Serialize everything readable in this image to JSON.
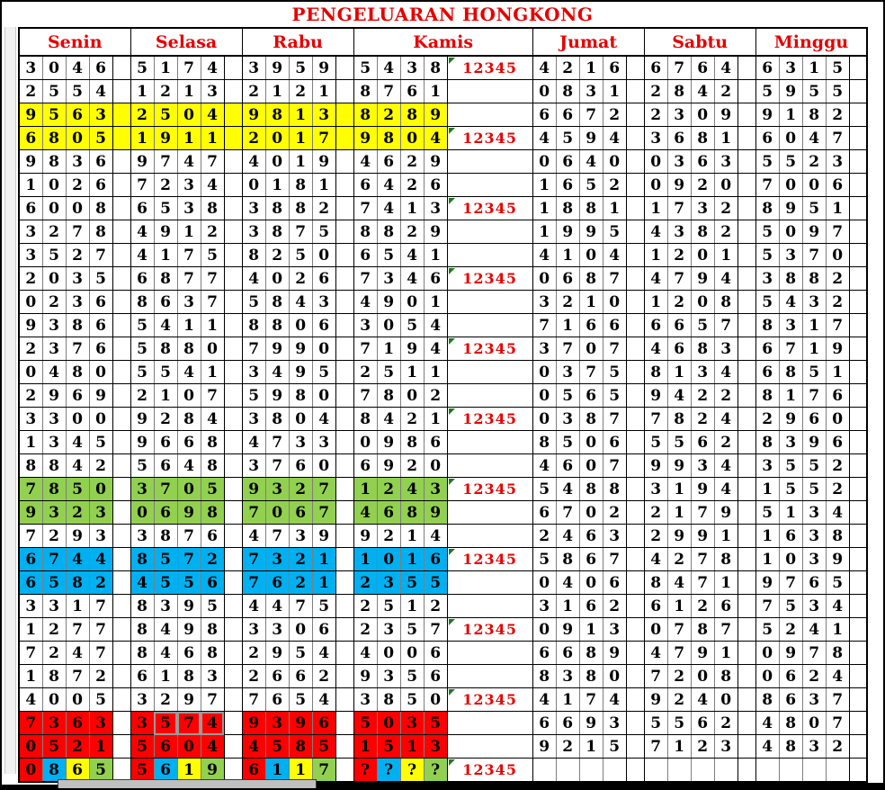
{
  "title": "PENGELUARAN HONGKONG",
  "colors": {
    "yellow": "#ffff00",
    "green": "#92d050",
    "blue": "#00b0f0",
    "red": "#ff0000",
    "red_text": "#ff0000",
    "header_text": "#e60000"
  },
  "table": {
    "day_headers": [
      "Senin",
      "Selasa",
      "Rabu",
      "Kamis",
      "Jumat",
      "Sabtu",
      "Minggu"
    ],
    "label_text": "12345",
    "rows": [
      {
        "senin": "3046",
        "selasa": "5174",
        "rabu": "3959",
        "kamis": "5438",
        "jumat": "4216",
        "sabtu": "6764",
        "minggu": "6315",
        "lbl": true,
        "red": {
          "kamis": [
            2
          ]
        }
      },
      {
        "senin": "2554",
        "selasa": "1213",
        "rabu": "2121",
        "kamis": "8761",
        "jumat": "0831",
        "sabtu": "2842",
        "minggu": "5955"
      },
      {
        "senin": "9563",
        "selasa": "2504",
        "rabu": "9813",
        "kamis": "8289",
        "jumat": "6672",
        "sabtu": "2309",
        "minggu": "9182",
        "hl": "yellow"
      },
      {
        "senin": "6805",
        "selasa": "1911",
        "rabu": "2017",
        "kamis": "9804",
        "jumat": "4594",
        "sabtu": "3681",
        "minggu": "6047",
        "hl": "yellow",
        "lbl": true,
        "red": {
          "kamis": [
            3
          ]
        }
      },
      {
        "senin": "9836",
        "selasa": "9747",
        "rabu": "4019",
        "kamis": "4629",
        "jumat": "0640",
        "sabtu": "0363",
        "minggu": "5523"
      },
      {
        "senin": "1026",
        "selasa": "7234",
        "rabu": "0181",
        "kamis": "6426",
        "jumat": "1652",
        "sabtu": "0920",
        "minggu": "7006"
      },
      {
        "senin": "6008",
        "selasa": "6538",
        "rabu": "3882",
        "kamis": "7413",
        "jumat": "1881",
        "sabtu": "1732",
        "minggu": "8951",
        "lbl": true,
        "red": {
          "kamis": [
            2,
            3
          ]
        }
      },
      {
        "senin": "3278",
        "selasa": "4912",
        "rabu": "3875",
        "kamis": "8829",
        "jumat": "1995",
        "sabtu": "4382",
        "minggu": "5097"
      },
      {
        "senin": "3527",
        "selasa": "4175",
        "rabu": "8250",
        "kamis": "6541",
        "jumat": "4104",
        "sabtu": "1201",
        "minggu": "5370"
      },
      {
        "senin": "2035",
        "selasa": "6877",
        "rabu": "4026",
        "kamis": "7346",
        "jumat": "0687",
        "sabtu": "4794",
        "minggu": "3882",
        "lbl": true,
        "red": {
          "kamis": [
            2
          ]
        }
      },
      {
        "senin": "0236",
        "selasa": "8637",
        "rabu": "5843",
        "kamis": "4901",
        "jumat": "3210",
        "sabtu": "1208",
        "minggu": "5432"
      },
      {
        "senin": "9386",
        "selasa": "5411",
        "rabu": "8806",
        "kamis": "3054",
        "jumat": "7166",
        "sabtu": "6657",
        "minggu": "8317"
      },
      {
        "senin": "2376",
        "selasa": "5880",
        "rabu": "7990",
        "kamis": "7194",
        "jumat": "3707",
        "sabtu": "4683",
        "minggu": "6719",
        "lbl": true,
        "red": {
          "kamis": [
            3
          ]
        }
      },
      {
        "senin": "0480",
        "selasa": "5541",
        "rabu": "3495",
        "kamis": "2511",
        "jumat": "0375",
        "sabtu": "8134",
        "minggu": "6851"
      },
      {
        "senin": "2969",
        "selasa": "2107",
        "rabu": "5980",
        "kamis": "7802",
        "jumat": "0565",
        "sabtu": "9422",
        "minggu": "8176"
      },
      {
        "senin": "3300",
        "selasa": "9284",
        "rabu": "3804",
        "kamis": "8421",
        "jumat": "0387",
        "sabtu": "7824",
        "minggu": "2960",
        "lbl": true,
        "red": {
          "kamis": [
            2,
            3
          ]
        }
      },
      {
        "senin": "1345",
        "selasa": "9668",
        "rabu": "4733",
        "kamis": "0986",
        "jumat": "8506",
        "sabtu": "5562",
        "minggu": "8396"
      },
      {
        "senin": "8842",
        "selasa": "5648",
        "rabu": "3760",
        "kamis": "6920",
        "jumat": "4607",
        "sabtu": "9934",
        "minggu": "3552"
      },
      {
        "senin": "7850",
        "selasa": "3705",
        "rabu": "9327",
        "kamis": "1243",
        "jumat": "5488",
        "sabtu": "3194",
        "minggu": "1552",
        "hl": "green",
        "lbl": true,
        "red": {
          "kamis": [
            2,
            3
          ]
        }
      },
      {
        "senin": "9323",
        "selasa": "0698",
        "rabu": "7067",
        "kamis": "4689",
        "jumat": "6702",
        "sabtu": "2179",
        "minggu": "5134",
        "hl": "green"
      },
      {
        "senin": "7293",
        "selasa": "3876",
        "rabu": "4739",
        "kamis": "9214",
        "jumat": "2463",
        "sabtu": "2991",
        "minggu": "1638"
      },
      {
        "senin": "6744",
        "selasa": "8572",
        "rabu": "7321",
        "kamis": "1016",
        "jumat": "5867",
        "sabtu": "4278",
        "minggu": "1039",
        "hl": "blue",
        "lbl": true,
        "red": {
          "kamis": [
            2
          ]
        }
      },
      {
        "senin": "6582",
        "selasa": "4556",
        "rabu": "7621",
        "kamis": "2355",
        "jumat": "0406",
        "sabtu": "8471",
        "minggu": "9765",
        "hl": "blue"
      },
      {
        "senin": "3317",
        "selasa": "8395",
        "rabu": "4475",
        "kamis": "2512",
        "jumat": "3162",
        "sabtu": "6126",
        "minggu": "7534"
      },
      {
        "senin": "1277",
        "selasa": "8498",
        "rabu": "3306",
        "kamis": "2357",
        "jumat": "0913",
        "sabtu": "0787",
        "minggu": "5241",
        "lbl": true,
        "red": {
          "kamis": [
            2
          ]
        }
      },
      {
        "senin": "7247",
        "selasa": "8468",
        "rabu": "2954",
        "kamis": "4006",
        "jumat": "6689",
        "sabtu": "4791",
        "minggu": "0978"
      },
      {
        "senin": "1872",
        "selasa": "6183",
        "rabu": "2662",
        "kamis": "9356",
        "jumat": "8380",
        "sabtu": "7208",
        "minggu": "0624"
      },
      {
        "senin": "4005",
        "selasa": "3297",
        "rabu": "7654",
        "kamis": "3850",
        "jumat": "4174",
        "sabtu": "9240",
        "minggu": "8637",
        "lbl": true,
        "red": {
          "kamis": [
            2
          ]
        }
      },
      {
        "senin": "7363",
        "selasa": "3574",
        "rabu": "9396",
        "kamis": "5035",
        "jumat": "6693",
        "sabtu": "5562",
        "minggu": "4807",
        "hl": "red",
        "gray": {
          "selasa": [
            1,
            2,
            3
          ]
        }
      },
      {
        "senin": "0521",
        "selasa": "5604",
        "rabu": "4585",
        "kamis": "1513",
        "jumat": "9215",
        "sabtu": "7123",
        "minggu": "4832",
        "hl": "red"
      },
      {
        "senin": "0865",
        "selasa": "5619",
        "rabu": "6117",
        "kamis": "????",
        "jumat": "",
        "sabtu": "",
        "minggu": "",
        "lbl": true,
        "pattern": [
          "red",
          "blue",
          "yellow",
          "green"
        ]
      }
    ]
  }
}
